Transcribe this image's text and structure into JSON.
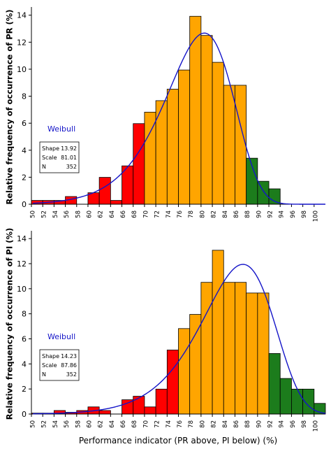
{
  "colors": {
    "red": "#ff0000",
    "orange": "#ffa500",
    "green": "#1c7c1c",
    "curve": "#1414c8"
  },
  "figure": {
    "xlabel": "Performance indicator (PR above, PI below) (%)"
  },
  "chart_data": [
    {
      "type": "bar",
      "ylabel": "Relative frequency of occurrence of PR (%)",
      "xlim": [
        50,
        102
      ],
      "ylim": [
        0,
        14.4
      ],
      "x_tick_labels": [
        "50",
        "52",
        "54",
        "56",
        "58",
        "60",
        "62",
        "64",
        "66",
        "68",
        "70",
        "72",
        "74",
        "76",
        "78",
        "80",
        "82",
        "84",
        "86",
        "88",
        "90",
        "92",
        "94",
        "96",
        "98",
        "100"
      ],
      "y_tick_labels": [
        "0",
        "2",
        "4",
        "6",
        "8",
        "10",
        "12",
        "14"
      ],
      "bin_width": 2,
      "bins": [
        {
          "x": 51,
          "value": 0.28,
          "color": "red"
        },
        {
          "x": 53,
          "value": 0.28,
          "color": "red"
        },
        {
          "x": 55,
          "value": 0.28,
          "color": "red"
        },
        {
          "x": 57,
          "value": 0.57,
          "color": "red"
        },
        {
          "x": 61,
          "value": 0.85,
          "color": "red"
        },
        {
          "x": 63,
          "value": 1.99,
          "color": "red"
        },
        {
          "x": 65,
          "value": 0.28,
          "color": "red"
        },
        {
          "x": 67,
          "value": 2.84,
          "color": "red"
        },
        {
          "x": 69,
          "value": 5.97,
          "color": "red"
        },
        {
          "x": 71,
          "value": 6.82,
          "color": "orange"
        },
        {
          "x": 73,
          "value": 7.67,
          "color": "orange"
        },
        {
          "x": 75,
          "value": 8.52,
          "color": "orange"
        },
        {
          "x": 77,
          "value": 9.94,
          "color": "orange"
        },
        {
          "x": 79,
          "value": 13.92,
          "color": "orange"
        },
        {
          "x": 81,
          "value": 12.5,
          "color": "orange"
        },
        {
          "x": 83,
          "value": 10.51,
          "color": "orange"
        },
        {
          "x": 85,
          "value": 8.81,
          "color": "orange"
        },
        {
          "x": 87,
          "value": 8.81,
          "color": "orange"
        },
        {
          "x": 89,
          "value": 3.41,
          "color": "green"
        },
        {
          "x": 91,
          "value": 1.7,
          "color": "green"
        },
        {
          "x": 93,
          "value": 1.14,
          "color": "green"
        }
      ],
      "fit": {
        "label": "Weibull",
        "shape_label": "Shape",
        "shape_value": "13.92",
        "scale_label": "Scale",
        "scale_value": "81.01",
        "n_label": "N",
        "n_value": "352",
        "shape": 13.92,
        "scale": 81.01
      }
    },
    {
      "type": "bar",
      "ylabel": "Relative frequency of occurrence of PI (%)",
      "xlim": [
        50,
        102
      ],
      "ylim": [
        0,
        14.4
      ],
      "x_tick_labels": [
        "50",
        "52",
        "54",
        "56",
        "58",
        "60",
        "62",
        "64",
        "66",
        "68",
        "70",
        "72",
        "74",
        "76",
        "78",
        "80",
        "82",
        "84",
        "86",
        "88",
        "90",
        "92",
        "94",
        "96",
        "98",
        "100"
      ],
      "y_tick_labels": [
        "0",
        "2",
        "4",
        "6",
        "8",
        "10",
        "12",
        "14"
      ],
      "bin_width": 2,
      "bins": [
        {
          "x": 51,
          "value": 0.07,
          "color": "red"
        },
        {
          "x": 53,
          "value": 0.07,
          "color": "red"
        },
        {
          "x": 55,
          "value": 0.28,
          "color": "red"
        },
        {
          "x": 57,
          "value": 0.14,
          "color": "red"
        },
        {
          "x": 59,
          "value": 0.28,
          "color": "red"
        },
        {
          "x": 61,
          "value": 0.57,
          "color": "red"
        },
        {
          "x": 63,
          "value": 0.28,
          "color": "red"
        },
        {
          "x": 67,
          "value": 1.14,
          "color": "red"
        },
        {
          "x": 69,
          "value": 1.42,
          "color": "red"
        },
        {
          "x": 71,
          "value": 0.57,
          "color": "red"
        },
        {
          "x": 73,
          "value": 1.99,
          "color": "red"
        },
        {
          "x": 75,
          "value": 5.11,
          "color": "red"
        },
        {
          "x": 77,
          "value": 6.82,
          "color": "orange"
        },
        {
          "x": 79,
          "value": 7.95,
          "color": "orange"
        },
        {
          "x": 81,
          "value": 10.51,
          "color": "orange"
        },
        {
          "x": 83,
          "value": 13.07,
          "color": "orange"
        },
        {
          "x": 85,
          "value": 10.51,
          "color": "orange"
        },
        {
          "x": 87,
          "value": 10.51,
          "color": "orange"
        },
        {
          "x": 89,
          "value": 9.66,
          "color": "orange"
        },
        {
          "x": 91,
          "value": 9.66,
          "color": "orange"
        },
        {
          "x": 93,
          "value": 4.83,
          "color": "green"
        },
        {
          "x": 95,
          "value": 2.84,
          "color": "green"
        },
        {
          "x": 97,
          "value": 1.99,
          "color": "green"
        },
        {
          "x": 99,
          "value": 1.99,
          "color": "green"
        },
        {
          "x": 101,
          "value": 0.85,
          "color": "green"
        }
      ],
      "fit": {
        "label": "Weibull",
        "shape_label": "Shape",
        "shape_value": "14.23",
        "scale_label": "Scale",
        "scale_value": "87.86",
        "n_label": "N",
        "n_value": "352",
        "shape": 14.23,
        "scale": 87.86
      }
    }
  ]
}
